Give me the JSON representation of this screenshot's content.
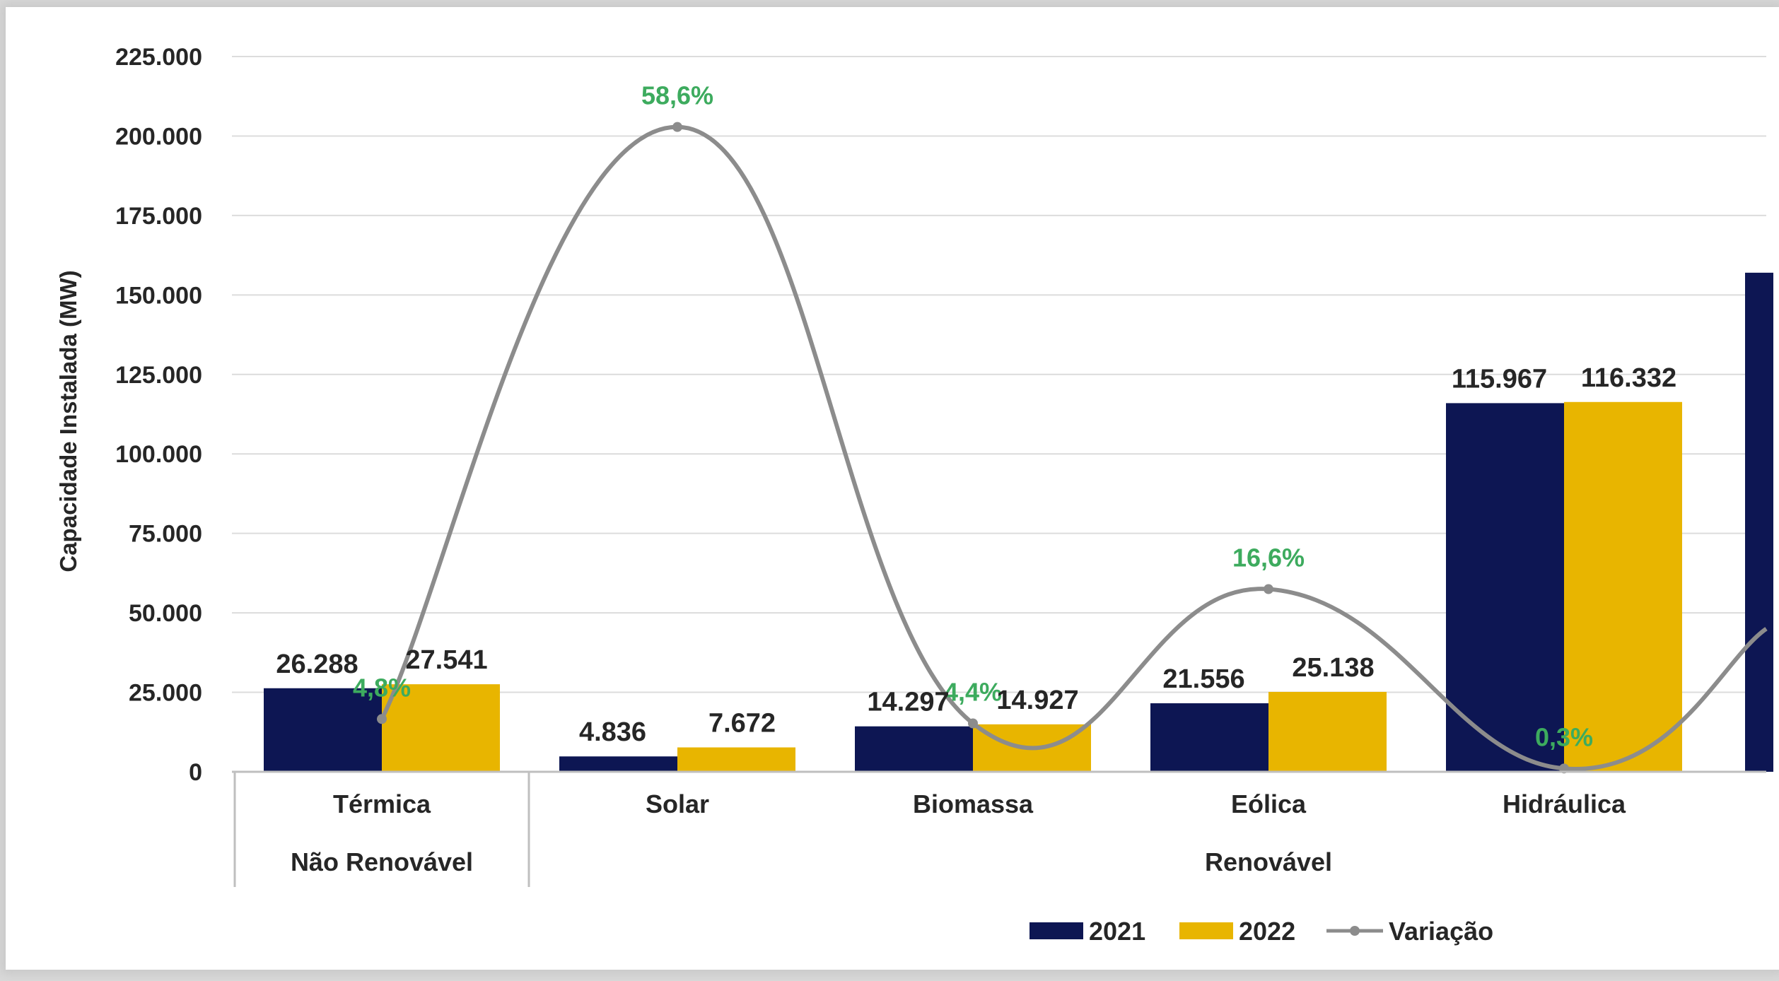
{
  "chart_data": {
    "type": "bar",
    "ylabel": "Capacidade Instalada (MW)",
    "yticks": [
      "0",
      "25.000",
      "50.000",
      "75.000",
      "100.000",
      "125.000",
      "150.000",
      "175.000",
      "200.000",
      "225.000"
    ],
    "ylim": [
      0,
      225000
    ],
    "grid": true,
    "legend_position": "bottom-right",
    "groups": [
      {
        "label": "Não Renovável",
        "categories": [
          "Térmica"
        ]
      },
      {
        "label": "Renovável",
        "categories": [
          "Solar",
          "Biomassa",
          "Eólica",
          "Hidráulica"
        ]
      }
    ],
    "categories": [
      "Térmica",
      "Solar",
      "Biomassa",
      "Eólica",
      "Hidráulica"
    ],
    "series": [
      {
        "name": "2021",
        "kind": "bar",
        "color": "#0d1653",
        "values": [
          26288,
          4836,
          14297,
          21556,
          115967
        ],
        "labels": [
          "26.288",
          "4.836",
          "14.297",
          "21.556",
          "115.967"
        ]
      },
      {
        "name": "2022",
        "kind": "bar",
        "color": "#e8b500",
        "values": [
          27541,
          7672,
          14927,
          25138,
          116332
        ],
        "labels": [
          "27.541",
          "7.672",
          "14.927",
          "25.138",
          "116.332"
        ]
      },
      {
        "name": "Variação",
        "kind": "line",
        "color": "#8c8c8c",
        "values": [
          4.8,
          58.6,
          4.4,
          16.6,
          0.3
        ],
        "labels": [
          "4,8%",
          "58,6%",
          "4,4%",
          "16,6%",
          "0,3%"
        ]
      }
    ],
    "partial_next_bar_value": 157000,
    "variacao_label_color": "#3dab5e"
  }
}
